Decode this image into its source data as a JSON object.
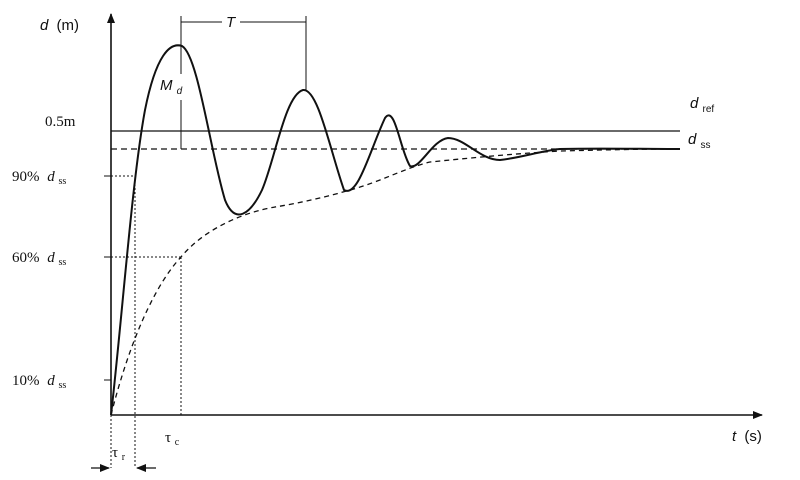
{
  "axes": {
    "y_symbol": "d",
    "y_unit": "(m)",
    "x_symbol": "t",
    "x_unit": "(s)"
  },
  "labels": {
    "period": "T",
    "overshoot_main": "M",
    "overshoot_sub": "d",
    "ref_main": "d",
    "ref_sub": "ref",
    "ss_main": "d",
    "ss_sub": "ss",
    "half_m": "0.5m",
    "pct90": "90%",
    "pct60": "60%",
    "pct10": "10%",
    "dss_main": "d",
    "dss_sub": "ss",
    "tau_c_main": "τ",
    "tau_c_sub": "c",
    "tau_r_main": "τ",
    "tau_r_sub": "r"
  }
}
